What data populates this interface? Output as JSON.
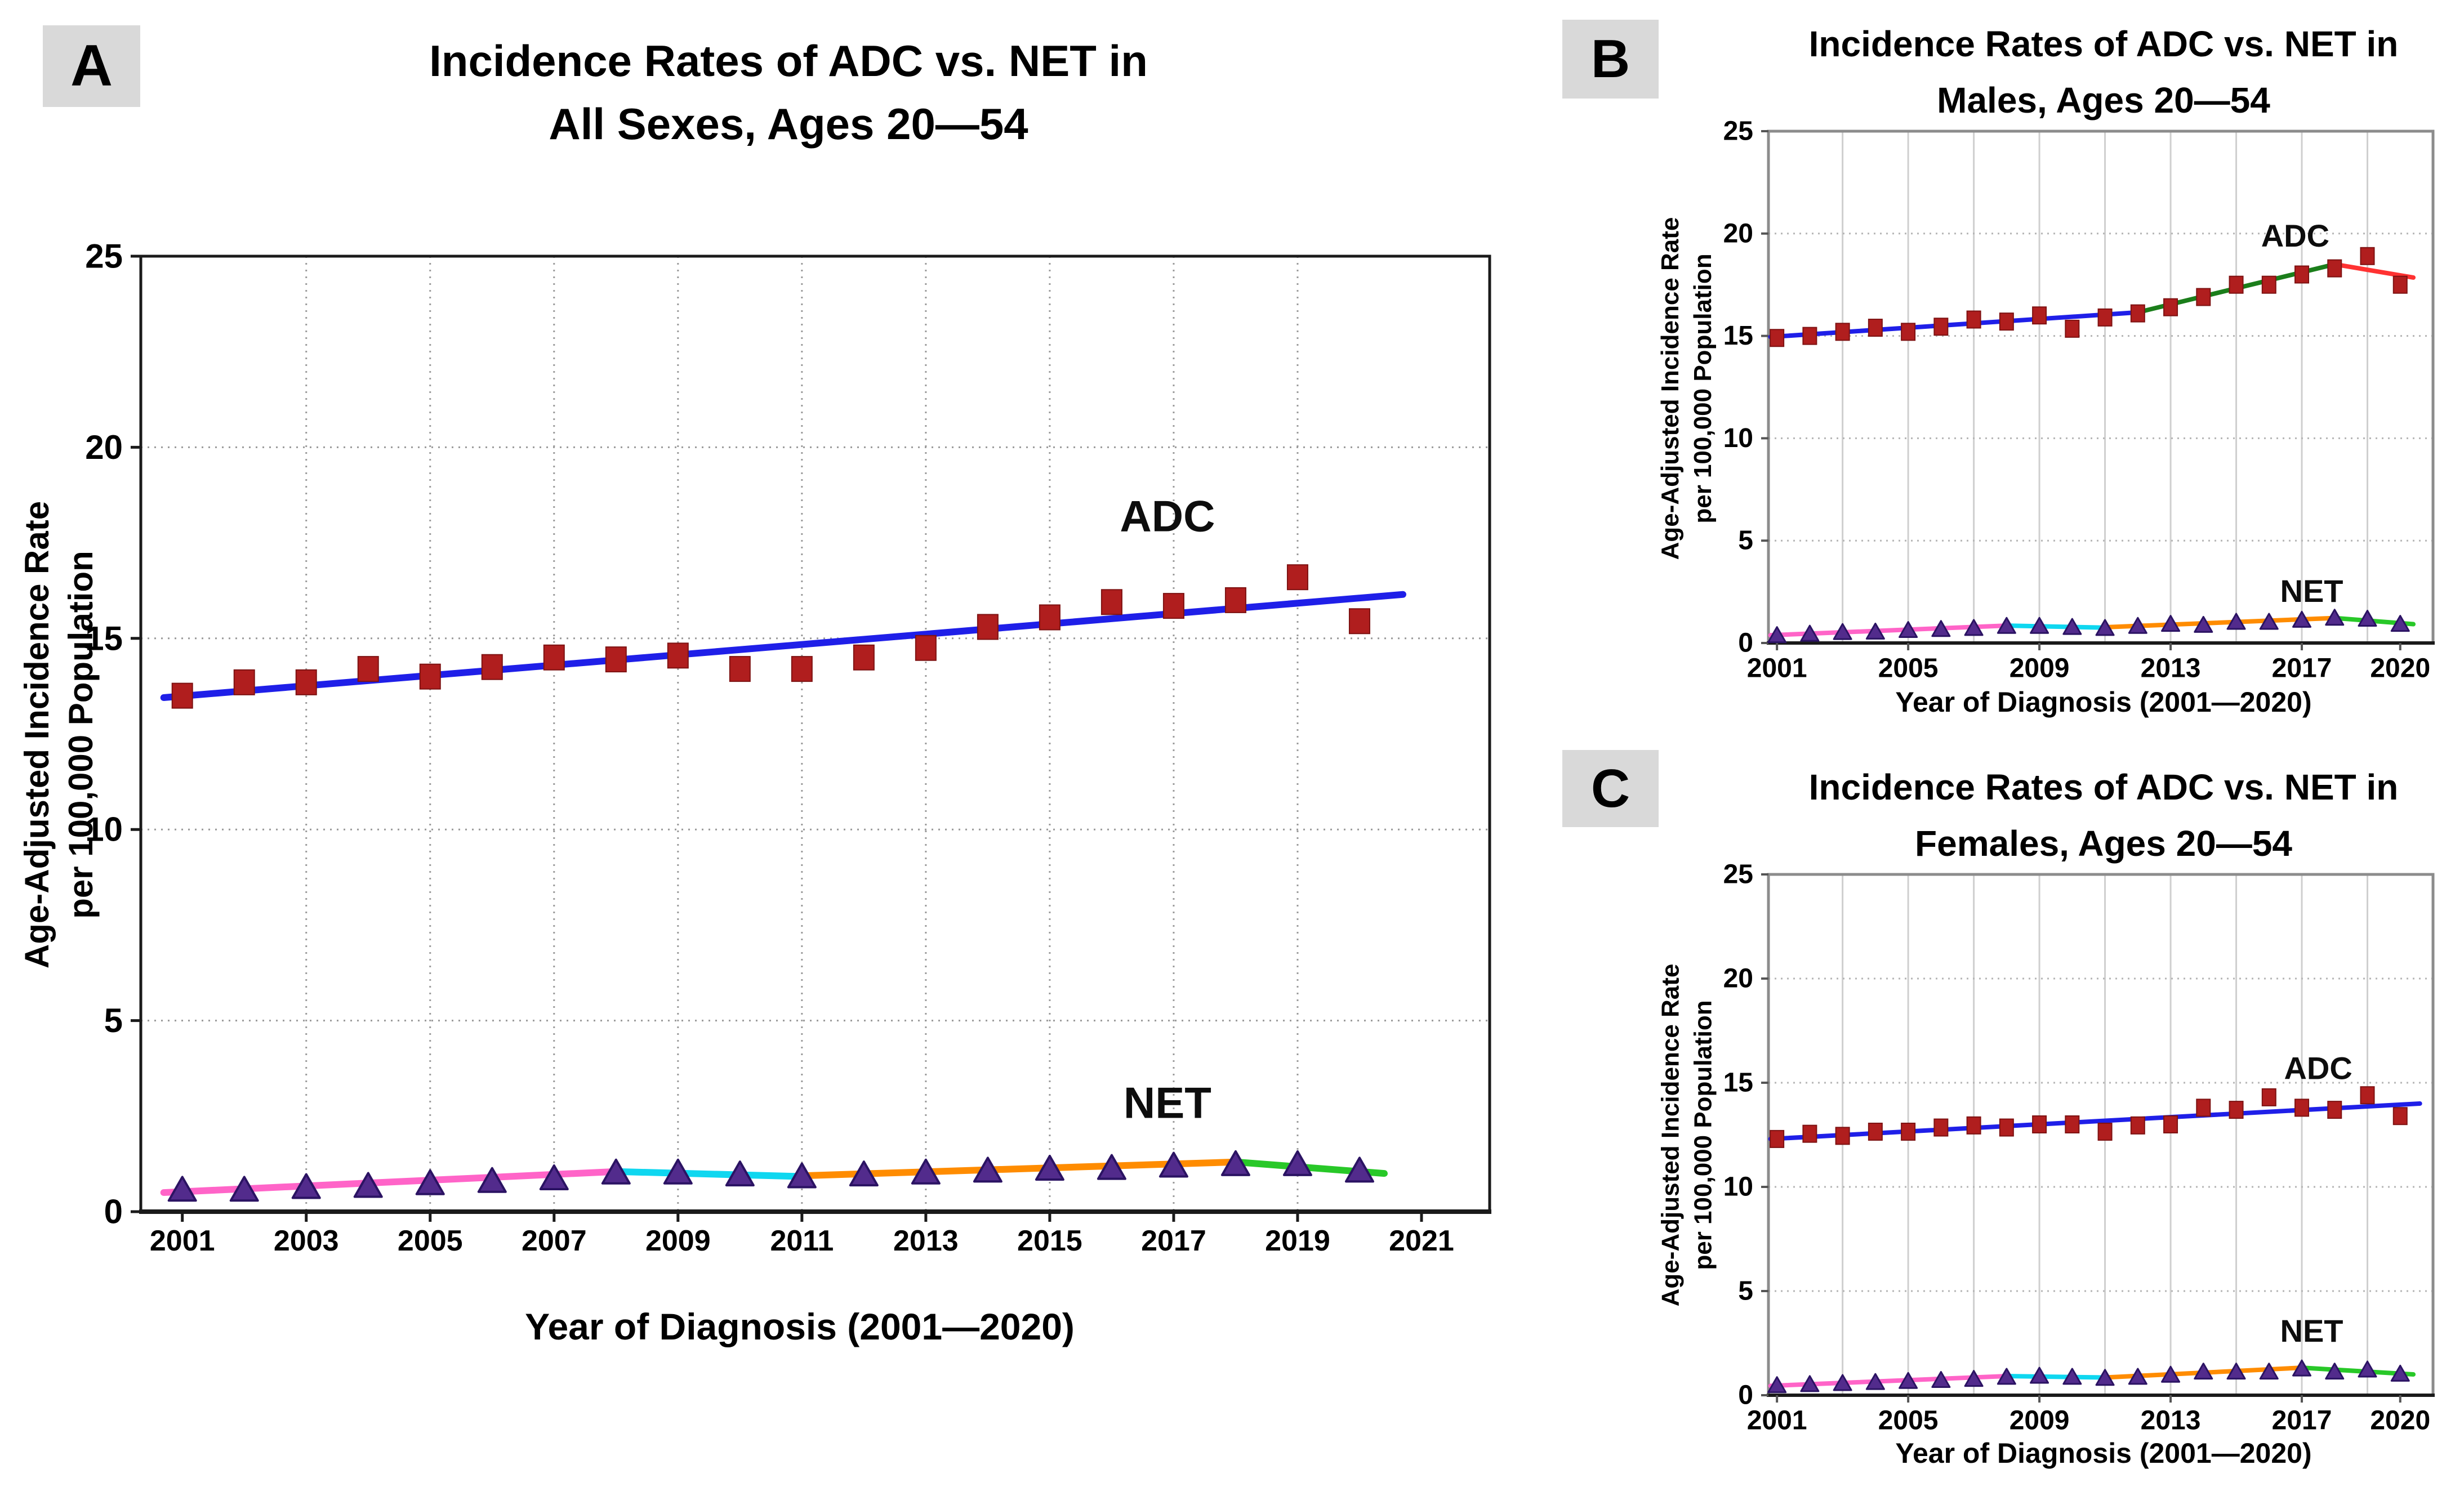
{
  "figure": {
    "background": "#ffffff",
    "panel_letter_box_color": "#d9d9d9"
  },
  "chart_data": [
    {
      "id": "A",
      "type": "scatter",
      "panel_letter": "A",
      "title_lines": [
        "Incidence Rates of ADC vs. NET in",
        "All Sexes, Ages 20—54"
      ],
      "xlabel": "Year of Diagnosis (2001—2020)",
      "ylabel_lines": [
        "Age-Adjusted Incidence Rate",
        "per 100,000 Population"
      ],
      "x": [
        2001,
        2002,
        2003,
        2004,
        2005,
        2006,
        2007,
        2008,
        2009,
        2010,
        2011,
        2012,
        2013,
        2014,
        2015,
        2016,
        2017,
        2018,
        2019,
        2020
      ],
      "series": [
        {
          "name": "ADC",
          "marker": "square",
          "color": "#B01E1E",
          "stroke": "#7E1212",
          "values": [
            13.5,
            13.85,
            13.85,
            14.2,
            14.0,
            14.25,
            14.5,
            14.45,
            14.55,
            14.2,
            14.2,
            14.5,
            14.75,
            15.3,
            15.55,
            15.95,
            15.85,
            16.0,
            16.6,
            15.45
          ],
          "label": {
            "text": "ADC",
            "x": 2016.9,
            "y": 18.2
          }
        },
        {
          "name": "NET",
          "marker": "triangle",
          "color": "#522B8C",
          "stroke": "#2B1363",
          "values": [
            0.55,
            0.55,
            0.62,
            0.65,
            0.72,
            0.78,
            0.85,
            1.0,
            1.0,
            0.95,
            0.9,
            0.95,
            1.0,
            1.05,
            1.1,
            1.12,
            1.18,
            1.22,
            1.22,
            1.05
          ],
          "label": {
            "text": "NET",
            "x": 2016.9,
            "y": 2.85
          }
        }
      ],
      "trend_segments": [
        {
          "series": "ADC",
          "color": "#1F1FE8",
          "x1": 2000.7,
          "y1": 13.45,
          "x2": 2020.7,
          "y2": 16.15
        },
        {
          "series": "NET",
          "color": "#FF64C8",
          "x1": 2000.7,
          "y1": 0.5,
          "x2": 2008,
          "y2": 1.05
        },
        {
          "series": "NET",
          "color": "#0FD7F0",
          "x1": 2008,
          "y1": 1.05,
          "x2": 2011,
          "y2": 0.92
        },
        {
          "series": "NET",
          "color": "#FF8C00",
          "x1": 2011,
          "y1": 0.94,
          "x2": 2018,
          "y2": 1.3
        },
        {
          "series": "NET",
          "color": "#28C828",
          "x1": 2018,
          "y1": 1.3,
          "x2": 2020.4,
          "y2": 1.0
        }
      ],
      "xlim": [
        2000.33,
        2022.1
      ],
      "ylim": [
        0,
        25
      ],
      "x_tick_years": [
        2001,
        2003,
        2005,
        2007,
        2009,
        2011,
        2013,
        2015,
        2017,
        2019,
        2021
      ],
      "y_ticks": [
        0,
        5,
        10,
        15,
        20,
        25
      ],
      "grid_x_years": [
        2003,
        2005,
        2007,
        2009,
        2011,
        2013,
        2015,
        2017,
        2019
      ],
      "grid_y_values": [
        5,
        10,
        15,
        20
      ],
      "legend_position": "none",
      "grid": "on"
    },
    {
      "id": "B",
      "type": "scatter",
      "panel_letter": "B",
      "title_lines": [
        "Incidence Rates of ADC vs. NET in",
        "Males, Ages 20—54"
      ],
      "xlabel": "Year of Diagnosis (2001—2020)",
      "ylabel_lines": [
        "Age-Adjusted Incidence Rate",
        "per 100,000 Population"
      ],
      "x": [
        2001,
        2002,
        2003,
        2004,
        2005,
        2006,
        2007,
        2008,
        2009,
        2010,
        2011,
        2012,
        2013,
        2014,
        2015,
        2016,
        2017,
        2018,
        2019,
        2020
      ],
      "series": [
        {
          "name": "ADC",
          "marker": "square",
          "color": "#B01E1E",
          "stroke": "#7E1212",
          "values": [
            14.9,
            15.0,
            15.2,
            15.4,
            15.2,
            15.45,
            15.8,
            15.7,
            16.0,
            15.35,
            15.9,
            16.1,
            16.4,
            16.9,
            17.5,
            17.5,
            18.0,
            18.3,
            18.9,
            17.5
          ],
          "label": {
            "text": "ADC",
            "x": 2016.8,
            "y": 19.9
          }
        },
        {
          "name": "NET",
          "marker": "triangle",
          "color": "#522B8C",
          "stroke": "#2B1363",
          "values": [
            0.35,
            0.42,
            0.5,
            0.52,
            0.6,
            0.65,
            0.7,
            0.8,
            0.8,
            0.75,
            0.7,
            0.8,
            0.9,
            0.85,
            1.0,
            1.0,
            1.1,
            1.2,
            1.15,
            0.9
          ],
          "label": {
            "text": "NET",
            "x": 2017.3,
            "y": 2.55
          }
        }
      ],
      "trend_segments": [
        {
          "series": "ADC",
          "color": "#1F1FE8",
          "x1": 2000.8,
          "y1": 14.95,
          "x2": 2012,
          "y2": 16.15
        },
        {
          "series": "ADC",
          "color": "#1B7E1B",
          "x1": 2012,
          "y1": 16.15,
          "x2": 2018,
          "y2": 18.5
        },
        {
          "series": "ADC",
          "color": "#FF3232",
          "x1": 2018,
          "y1": 18.5,
          "x2": 2020.4,
          "y2": 17.85
        },
        {
          "series": "NET",
          "color": "#FF64C8",
          "x1": 2000.8,
          "y1": 0.38,
          "x2": 2008,
          "y2": 0.85
        },
        {
          "series": "NET",
          "color": "#0FD7F0",
          "x1": 2008,
          "y1": 0.85,
          "x2": 2011,
          "y2": 0.75
        },
        {
          "series": "NET",
          "color": "#FF8C00",
          "x1": 2011,
          "y1": 0.77,
          "x2": 2018,
          "y2": 1.22
        },
        {
          "series": "NET",
          "color": "#28C828",
          "x1": 2018,
          "y1": 1.22,
          "x2": 2020.4,
          "y2": 0.92
        }
      ],
      "xlim": [
        2000.74,
        2021.0
      ],
      "ylim": [
        0,
        25
      ],
      "x_tick_years": [
        2001,
        2005,
        2009,
        2013,
        2017,
        2020
      ],
      "y_ticks": [
        0,
        5,
        10,
        15,
        20,
        25
      ],
      "grid_x_years": [
        2003,
        2005,
        2007,
        2009,
        2011,
        2013,
        2015,
        2017,
        2019
      ],
      "grid_y_values": [
        5,
        10,
        15,
        20
      ],
      "legend_position": "none",
      "grid": "on"
    },
    {
      "id": "C",
      "type": "scatter",
      "panel_letter": "C",
      "title_lines": [
        "Incidence Rates of ADC vs. NET in",
        "Females, Ages 20—54"
      ],
      "xlabel": "Year of Diagnosis (2001—2020)",
      "ylabel_lines": [
        "Age-Adjusted Incidence Rate",
        "per 100,000 Population"
      ],
      "x": [
        2001,
        2002,
        2003,
        2004,
        2005,
        2006,
        2007,
        2008,
        2009,
        2010,
        2011,
        2012,
        2013,
        2014,
        2015,
        2016,
        2017,
        2018,
        2019,
        2020
      ],
      "series": [
        {
          "name": "ADC",
          "marker": "square",
          "color": "#B01E1E",
          "stroke": "#7E1212",
          "values": [
            12.3,
            12.55,
            12.45,
            12.65,
            12.65,
            12.85,
            12.95,
            12.85,
            13.0,
            13.0,
            12.65,
            12.95,
            13.0,
            13.8,
            13.7,
            14.3,
            13.8,
            13.7,
            14.4,
            13.4
          ],
          "label": {
            "text": "ADC",
            "x": 2017.5,
            "y": 15.7
          }
        },
        {
          "name": "NET",
          "marker": "triangle",
          "color": "#522B8C",
          "stroke": "#2B1363",
          "values": [
            0.45,
            0.5,
            0.55,
            0.6,
            0.65,
            0.7,
            0.75,
            0.85,
            0.9,
            0.85,
            0.8,
            0.85,
            0.95,
            1.1,
            1.1,
            1.1,
            1.25,
            1.1,
            1.2,
            1.0
          ],
          "label": {
            "text": "NET",
            "x": 2017.3,
            "y": 3.1
          }
        }
      ],
      "trend_segments": [
        {
          "series": "ADC",
          "color": "#1F1FE8",
          "x1": 2000.8,
          "y1": 12.3,
          "x2": 2020.6,
          "y2": 14.0
        },
        {
          "series": "NET",
          "color": "#FF64C8",
          "x1": 2000.8,
          "y1": 0.45,
          "x2": 2008,
          "y2": 0.92
        },
        {
          "series": "NET",
          "color": "#0FD7F0",
          "x1": 2008,
          "y1": 0.92,
          "x2": 2011,
          "y2": 0.85
        },
        {
          "series": "NET",
          "color": "#FF8C00",
          "x1": 2011,
          "y1": 0.85,
          "x2": 2017,
          "y2": 1.32
        },
        {
          "series": "NET",
          "color": "#28C828",
          "x1": 2017,
          "y1": 1.32,
          "x2": 2020.4,
          "y2": 1.0
        }
      ],
      "xlim": [
        2000.74,
        2021.0
      ],
      "ylim": [
        0,
        25
      ],
      "x_tick_years": [
        2001,
        2005,
        2009,
        2013,
        2017,
        2020
      ],
      "y_ticks": [
        0,
        5,
        10,
        15,
        20,
        25
      ],
      "grid_x_years": [
        2003,
        2005,
        2007,
        2009,
        2011,
        2013,
        2015,
        2017,
        2019
      ],
      "grid_y_values": [
        5,
        10,
        15,
        20
      ],
      "legend_position": "none",
      "grid": "on"
    }
  ]
}
